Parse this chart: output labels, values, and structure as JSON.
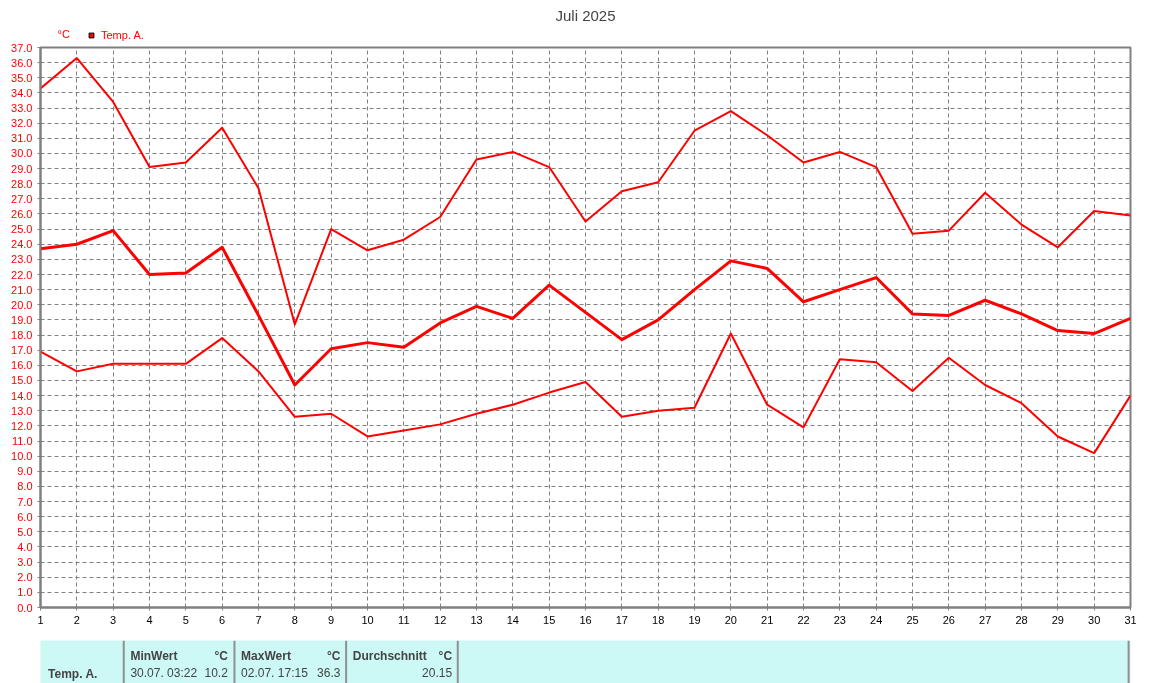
{
  "chart_data": {
    "type": "line",
    "title": "Juli 2025",
    "ylabel": "°C",
    "x": [
      1,
      2,
      3,
      4,
      5,
      6,
      7,
      8,
      9,
      10,
      11,
      12,
      13,
      14,
      15,
      16,
      17,
      18,
      19,
      20,
      21,
      22,
      23,
      24,
      25,
      26,
      27,
      28,
      29,
      30,
      31
    ],
    "series": [
      {
        "name": "Temp. A.",
        "color": "#ff0000",
        "values": [
          34.3,
          36.3,
          33.4,
          29.1,
          29.4,
          31.7,
          27.7,
          18.7,
          25.0,
          23.6,
          24.3,
          25.8,
          29.6,
          30.1,
          29.1,
          25.5,
          27.5,
          28.1,
          31.5,
          32.8,
          31.2,
          29.4,
          30.1,
          29.1,
          24.7,
          24.9,
          27.4,
          25.3,
          23.8,
          26.2,
          25.9
        ]
      },
      {
        "color": "#ff0000",
        "values": [
          23.7,
          24.0,
          24.9,
          22.0,
          22.1,
          23.8,
          19.3,
          14.7,
          17.1,
          17.5,
          17.2,
          18.8,
          19.9,
          19.1,
          21.3,
          19.5,
          17.7,
          19.0,
          21.0,
          22.9,
          22.4,
          20.2,
          21.0,
          21.8,
          19.4,
          19.3,
          20.3,
          19.4,
          18.3,
          18.1,
          19.1
        ]
      },
      {
        "color": "#ff0000",
        "values": [
          16.9,
          15.6,
          16.1,
          16.1,
          16.1,
          17.8,
          15.6,
          12.6,
          12.8,
          11.3,
          11.7,
          12.1,
          12.8,
          13.4,
          14.2,
          14.9,
          12.6,
          13.0,
          13.2,
          18.1,
          13.4,
          11.9,
          16.4,
          16.2,
          14.3,
          16.5,
          14.7,
          13.5,
          11.3,
          10.2,
          14.0
        ]
      }
    ],
    "xlim": [
      1,
      31
    ],
    "xticks": [
      1,
      2,
      3,
      4,
      5,
      6,
      7,
      8,
      9,
      10,
      11,
      12,
      13,
      14,
      15,
      16,
      17,
      18,
      19,
      20,
      21,
      22,
      23,
      24,
      25,
      26,
      27,
      28,
      29,
      30,
      31
    ],
    "ylim": [
      0,
      37
    ],
    "yticks": [
      {
        "value": 0,
        "label": "0.0"
      },
      {
        "value": 1,
        "label": "1.0"
      },
      {
        "value": 2,
        "label": "2.0"
      },
      {
        "value": 3,
        "label": "3.0"
      },
      {
        "value": 4,
        "label": "4.0"
      },
      {
        "value": 5,
        "label": "5.0"
      },
      {
        "value": 6,
        "label": "6.0"
      },
      {
        "value": 7,
        "label": "7.0"
      },
      {
        "value": 8,
        "label": "8.0"
      },
      {
        "value": 9,
        "label": "9.0"
      },
      {
        "value": 10,
        "label": "10.0"
      },
      {
        "value": 11,
        "label": "11.0"
      },
      {
        "value": 12,
        "label": "12.0"
      },
      {
        "value": 13,
        "label": "13.0"
      },
      {
        "value": 14,
        "label": "14.0"
      },
      {
        "value": 15,
        "label": "15.0"
      },
      {
        "value": 16,
        "label": "16.0"
      },
      {
        "value": 17,
        "label": "17.0"
      },
      {
        "value": 18,
        "label": "18.0"
      },
      {
        "value": 19,
        "label": "19.0"
      },
      {
        "value": 20,
        "label": "20.0"
      },
      {
        "value": 21,
        "label": "21.0"
      },
      {
        "value": 22,
        "label": "22.0"
      },
      {
        "value": 23,
        "label": "23.0"
      },
      {
        "value": 24,
        "label": "24.0"
      },
      {
        "value": 25,
        "label": "25.0"
      },
      {
        "value": 26,
        "label": "26.0"
      },
      {
        "value": 27,
        "label": "27.0"
      },
      {
        "value": 28,
        "label": "28.0"
      },
      {
        "value": 29,
        "label": "29.0"
      },
      {
        "value": 30,
        "label": "30.0"
      },
      {
        "value": 31,
        "label": "31.0"
      },
      {
        "value": 32,
        "label": "32.0"
      },
      {
        "value": 33,
        "label": "33.0"
      },
      {
        "value": 34,
        "label": "34.0"
      },
      {
        "value": 35,
        "label": "35.0"
      },
      {
        "value": 36,
        "label": "36.0"
      },
      {
        "value": 37,
        "label": "37.0"
      }
    ],
    "grid": true,
    "legend": "top left",
    "marker": "none",
    "line_style": "solid",
    "annotations": [
      "Temp. A.",
      "MinWert",
      "°C",
      "30.07.  03:22",
      "10.2",
      "MaxWert",
      "°C",
      "02.07.  17:15",
      "36.3",
      "Durchschnitt",
      "°C",
      "20.15"
    ]
  }
}
